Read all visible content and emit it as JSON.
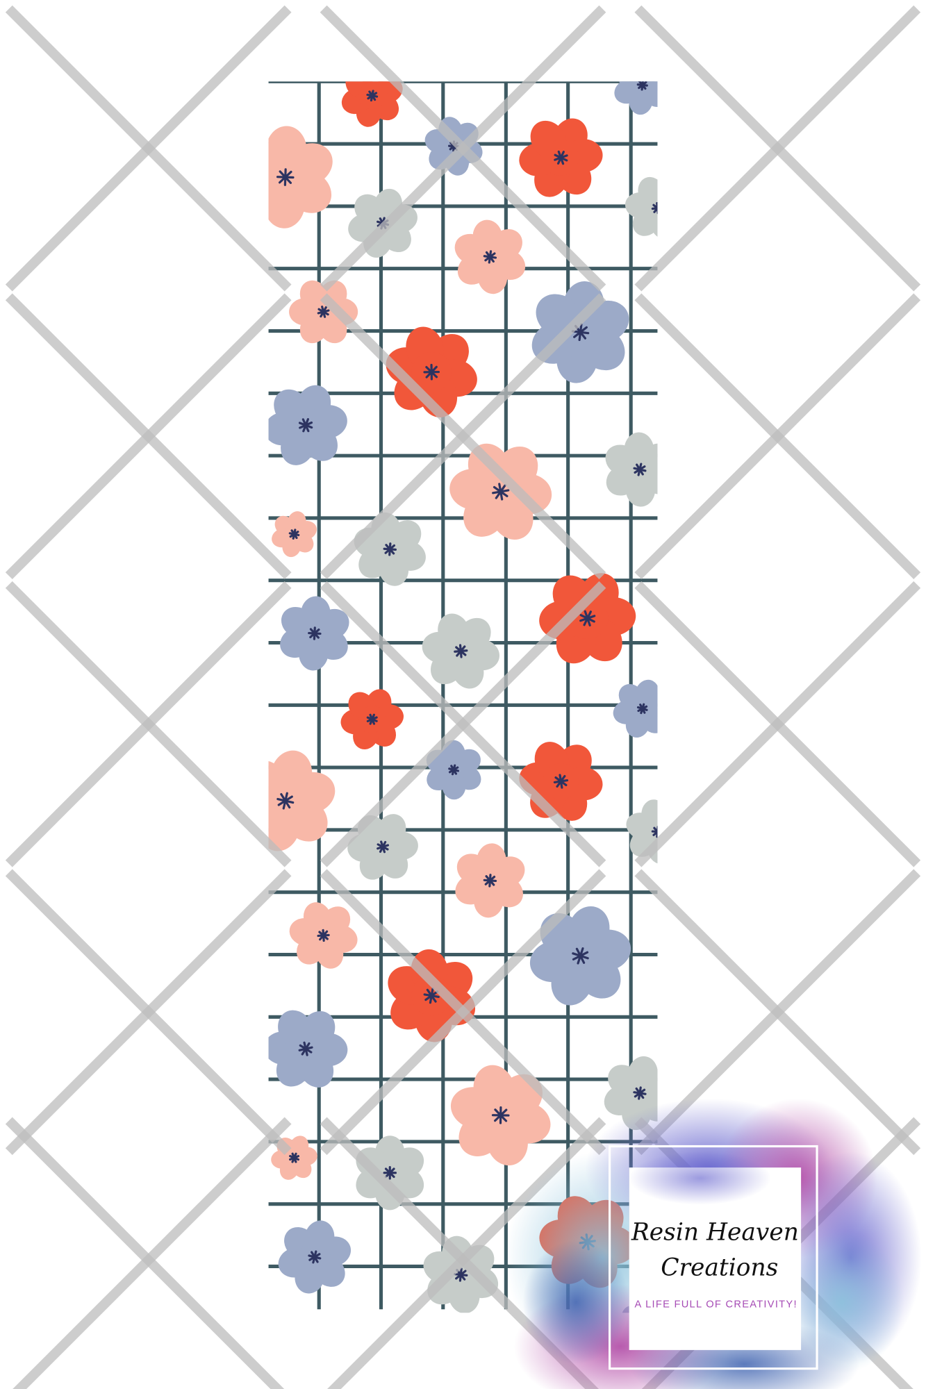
{
  "pattern": {
    "colors": {
      "grid": "#3e5a62",
      "red": "#f1573a",
      "peach": "#f8b8a8",
      "blue": "#9caac8",
      "grey": "#c6ccc9",
      "flower_center": "#2d3461",
      "watermark": "#bdbdbd"
    }
  },
  "logo": {
    "name_line1": "Resin Heaven",
    "name_line2": "Creations",
    "tagline": "A LIFE FULL OF CREATIVITY!",
    "colors": {
      "purple": "#6e6bd0",
      "magenta": "#b04aa8",
      "sky": "#8fc0dc",
      "tagline": "#a64bb5"
    }
  }
}
